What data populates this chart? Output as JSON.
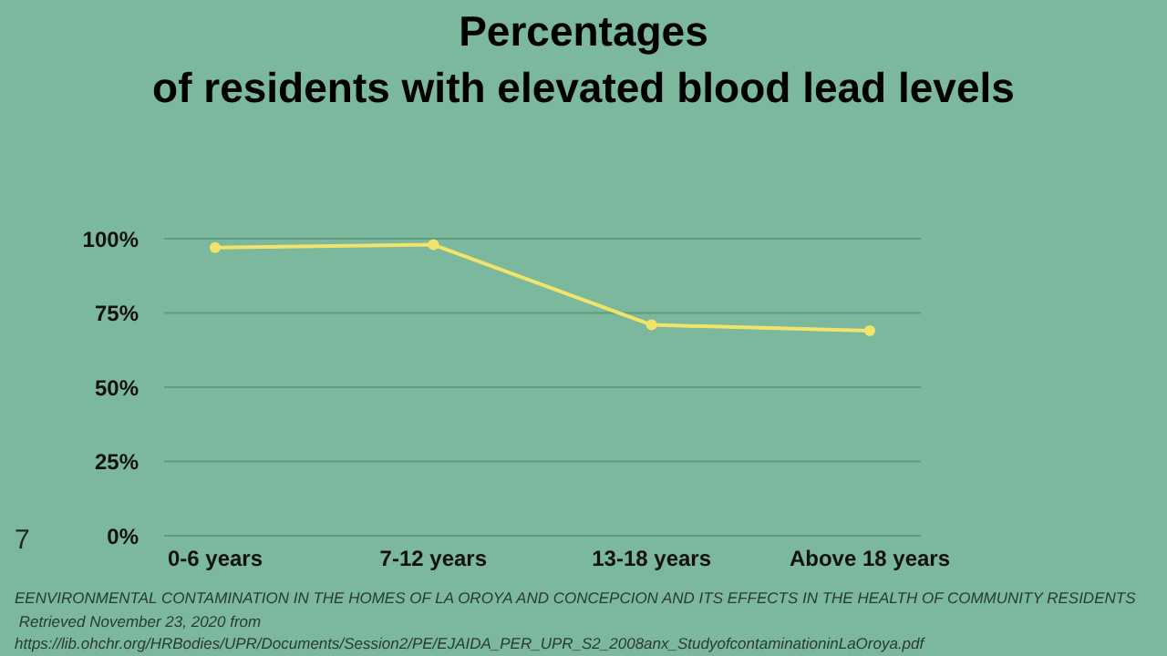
{
  "chart_data": {
    "type": "line",
    "title": "Percentages\nof residents with elevated blood lead levels",
    "categories": [
      "0-6 years",
      "7-12 years",
      "13-18 years",
      "Above 18 years"
    ],
    "series": [
      {
        "color": "#f2e46a",
        "values": [
          97,
          98,
          71,
          69
        ]
      }
    ],
    "ylim": [
      0,
      100
    ],
    "yticks": [
      {
        "value": 0,
        "label": "0%"
      },
      {
        "value": 25,
        "label": "25%"
      },
      {
        "value": 50,
        "label": "50%"
      },
      {
        "value": 75,
        "label": "75%"
      },
      {
        "value": 100,
        "label": "100%"
      }
    ],
    "grid": "y",
    "marker": "circle",
    "line_style": "solid",
    "legend": false,
    "annotations": [
      "7",
      "EENVIRONMENTAL CONTAMINATION IN THE HOMES OF LA OROYA AND CONCEPCION AND ITS EFFECTS IN THE HEALTH OF COMMUNITY RESIDENTS",
      " Retrieved November 23, 2020 from",
      "https://lib.ohchr.org/HRBodies/UPR/Documents/Session2/PE/EJAIDA_PER_UPR_S2_2008anx_StudyofcontaminationinLaOroya.pdf"
    ]
  }
}
